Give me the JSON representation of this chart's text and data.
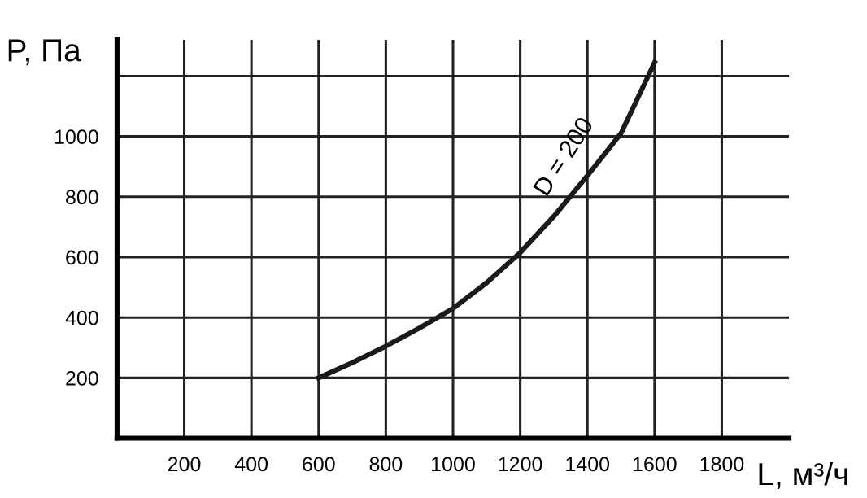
{
  "chart_data": {
    "type": "line",
    "xlabel": "L, м³/ч",
    "ylabel": "P, Па",
    "x": [
      600,
      700,
      800,
      900,
      1000,
      1100,
      1200,
      1300,
      1400,
      1500,
      1600
    ],
    "series": [
      {
        "name": "D = 200",
        "color": "#1a1a1a",
        "values": [
          200,
          250,
          305,
          365,
          430,
          515,
          615,
          735,
          870,
          1010,
          1245
        ]
      }
    ],
    "xlim": [
      0,
      2000
    ],
    "ylim": [
      0,
      1320
    ],
    "xticks": [
      200,
      400,
      600,
      800,
      1000,
      1200,
      1400,
      1600,
      1800
    ],
    "yticks": [
      200,
      400,
      600,
      800,
      1000,
      {
        "value": 1200,
        "label": null
      }
    ],
    "grid": true,
    "marker": "none",
    "line_style": "solid"
  }
}
